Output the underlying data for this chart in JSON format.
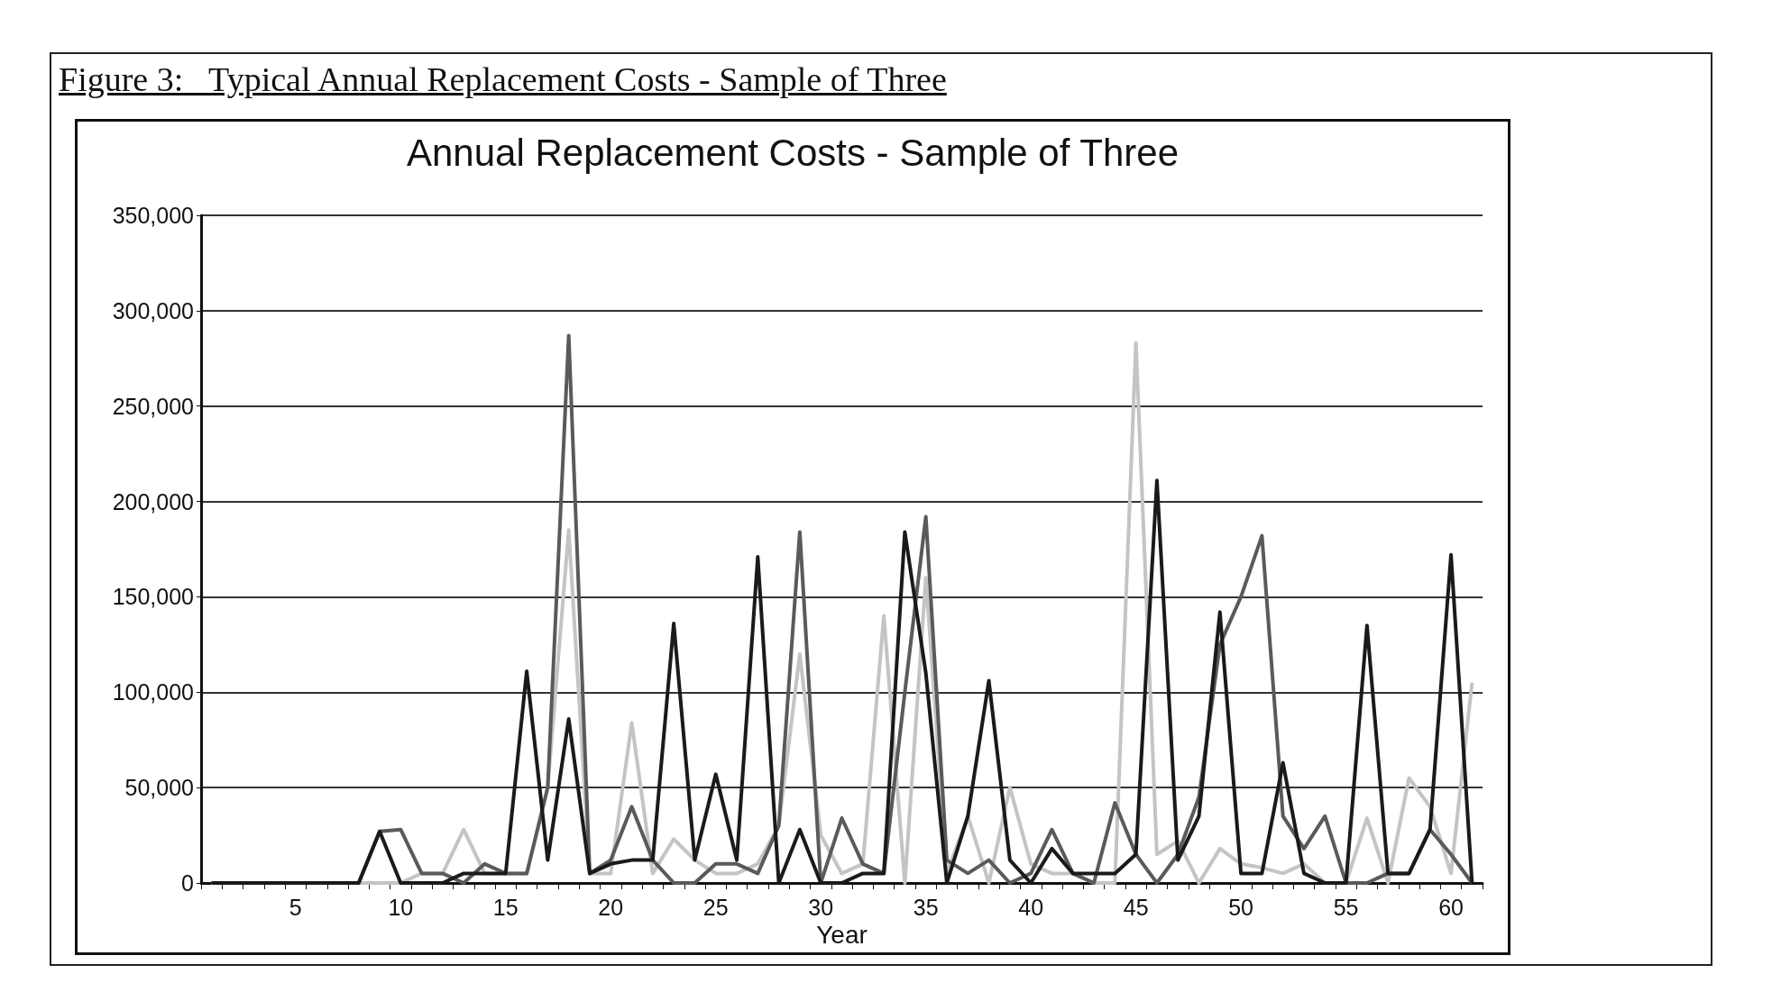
{
  "chart_data": {
    "type": "line",
    "title": "Annual Replacement Costs - Sample of Three",
    "annotations": [
      "Figure 3:   Typical Annual Replacement Costs - Sample of Three"
    ],
    "xlabel": "Year",
    "categories": [
      null,
      null,
      null,
      null,
      "5",
      null,
      null,
      null,
      null,
      "10",
      null,
      null,
      null,
      null,
      "15",
      null,
      null,
      null,
      null,
      "20",
      null,
      null,
      null,
      null,
      "25",
      null,
      null,
      null,
      null,
      "30",
      null,
      null,
      null,
      null,
      "35",
      null,
      null,
      null,
      null,
      "40",
      null,
      null,
      null,
      null,
      "45",
      null,
      null,
      null,
      null,
      "50",
      null,
      null,
      null,
      null,
      "55",
      null,
      null,
      null,
      null,
      "60",
      null
    ],
    "series": [
      {
        "color": "#c4c4c4",
        "values": [
          0,
          0,
          0,
          0,
          0,
          0,
          0,
          0,
          0,
          0,
          5000,
          5000,
          28000,
          5000,
          5000,
          5000,
          50000,
          185000,
          5000,
          5000,
          84000,
          5000,
          23000,
          12000,
          5000,
          5000,
          10000,
          30000,
          120000,
          25000,
          5000,
          10000,
          140000,
          0,
          160000,
          5000,
          35000,
          0,
          50000,
          10000,
          5000,
          5000,
          0,
          0,
          283000,
          15000,
          22000,
          0,
          18000,
          10000,
          8000,
          5000,
          10000,
          0,
          0,
          34000,
          0,
          55000,
          40000,
          5000,
          105000
        ]
      },
      {
        "color": "#5a5a5a",
        "values": [
          0,
          0,
          0,
          0,
          0,
          0,
          0,
          0,
          27000,
          28000,
          5000,
          5000,
          0,
          10000,
          5000,
          5000,
          50000,
          287000,
          5000,
          12000,
          40000,
          12000,
          0,
          0,
          10000,
          10000,
          5000,
          30000,
          184000,
          0,
          34000,
          10000,
          5000,
          100000,
          192000,
          12000,
          5000,
          12000,
          0,
          5000,
          28000,
          5000,
          0,
          42000,
          15000,
          0,
          15000,
          45000,
          125000,
          150000,
          182000,
          35000,
          18000,
          35000,
          0,
          0,
          5000,
          5000,
          28000,
          15000,
          0
        ]
      },
      {
        "color": "#1a1a1a",
        "values": [
          0,
          0,
          0,
          0,
          0,
          0,
          0,
          0,
          27000,
          0,
          0,
          0,
          5000,
          5000,
          5000,
          111000,
          12000,
          86000,
          5000,
          10000,
          12000,
          12000,
          136000,
          12000,
          57000,
          12000,
          171000,
          0,
          28000,
          0,
          0,
          5000,
          5000,
          184000,
          110000,
          0,
          35000,
          106000,
          12000,
          0,
          18000,
          5000,
          5000,
          5000,
          15000,
          211000,
          12000,
          35000,
          142000,
          5000,
          5000,
          63000,
          5000,
          0,
          0,
          135000,
          5000,
          5000,
          28000,
          172000,
          0
        ]
      }
    ],
    "ylim": [
      0,
      350000
    ],
    "yticks": [
      0,
      {
        "value": 50000,
        "label": "50,000"
      },
      {
        "value": 100000,
        "label": "100,000"
      },
      {
        "value": 150000,
        "label": "150,000"
      },
      {
        "value": 200000,
        "label": "200,000"
      },
      {
        "value": 250000,
        "label": "250,000"
      },
      {
        "value": 300000,
        "label": "300,000"
      },
      {
        "value": 350000,
        "label": "350,000"
      }
    ],
    "grid": "y",
    "line_style": "solid",
    "marker": "none"
  }
}
